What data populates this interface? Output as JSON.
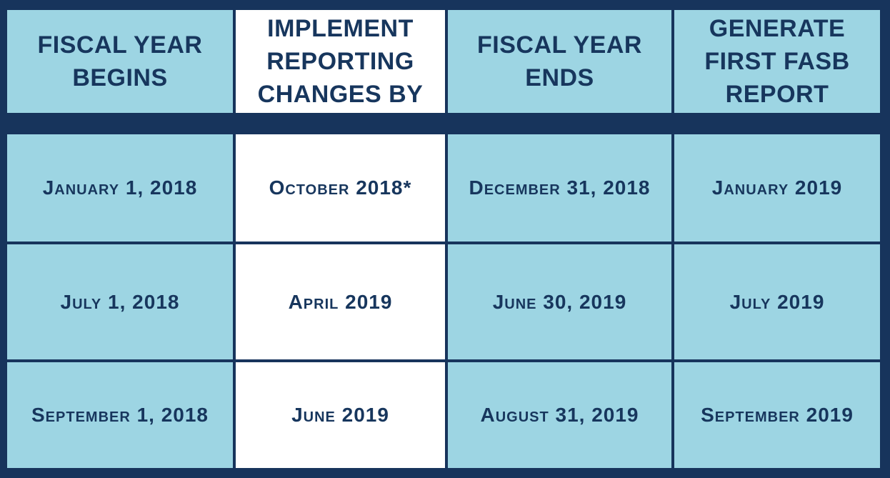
{
  "table": {
    "header": [
      [
        "FISCAL YEAR",
        "BEGINS"
      ],
      [
        "IMPLEMENT",
        "REPORTING",
        "CHANGES BY"
      ],
      [
        "FISCAL YEAR",
        "ENDS"
      ],
      [
        "GENERATE",
        "FIRST FASB",
        "REPORT"
      ]
    ],
    "rows": [
      [
        "January 1, 2018",
        "October 2018*",
        "December 31, 2018",
        "January 2019"
      ],
      [
        "July 1, 2018",
        "April 2019",
        "June 30, 2019",
        "July 2019"
      ],
      [
        "September 1, 2018",
        "June 2019",
        "August 31, 2019",
        "September 2019"
      ]
    ]
  }
}
